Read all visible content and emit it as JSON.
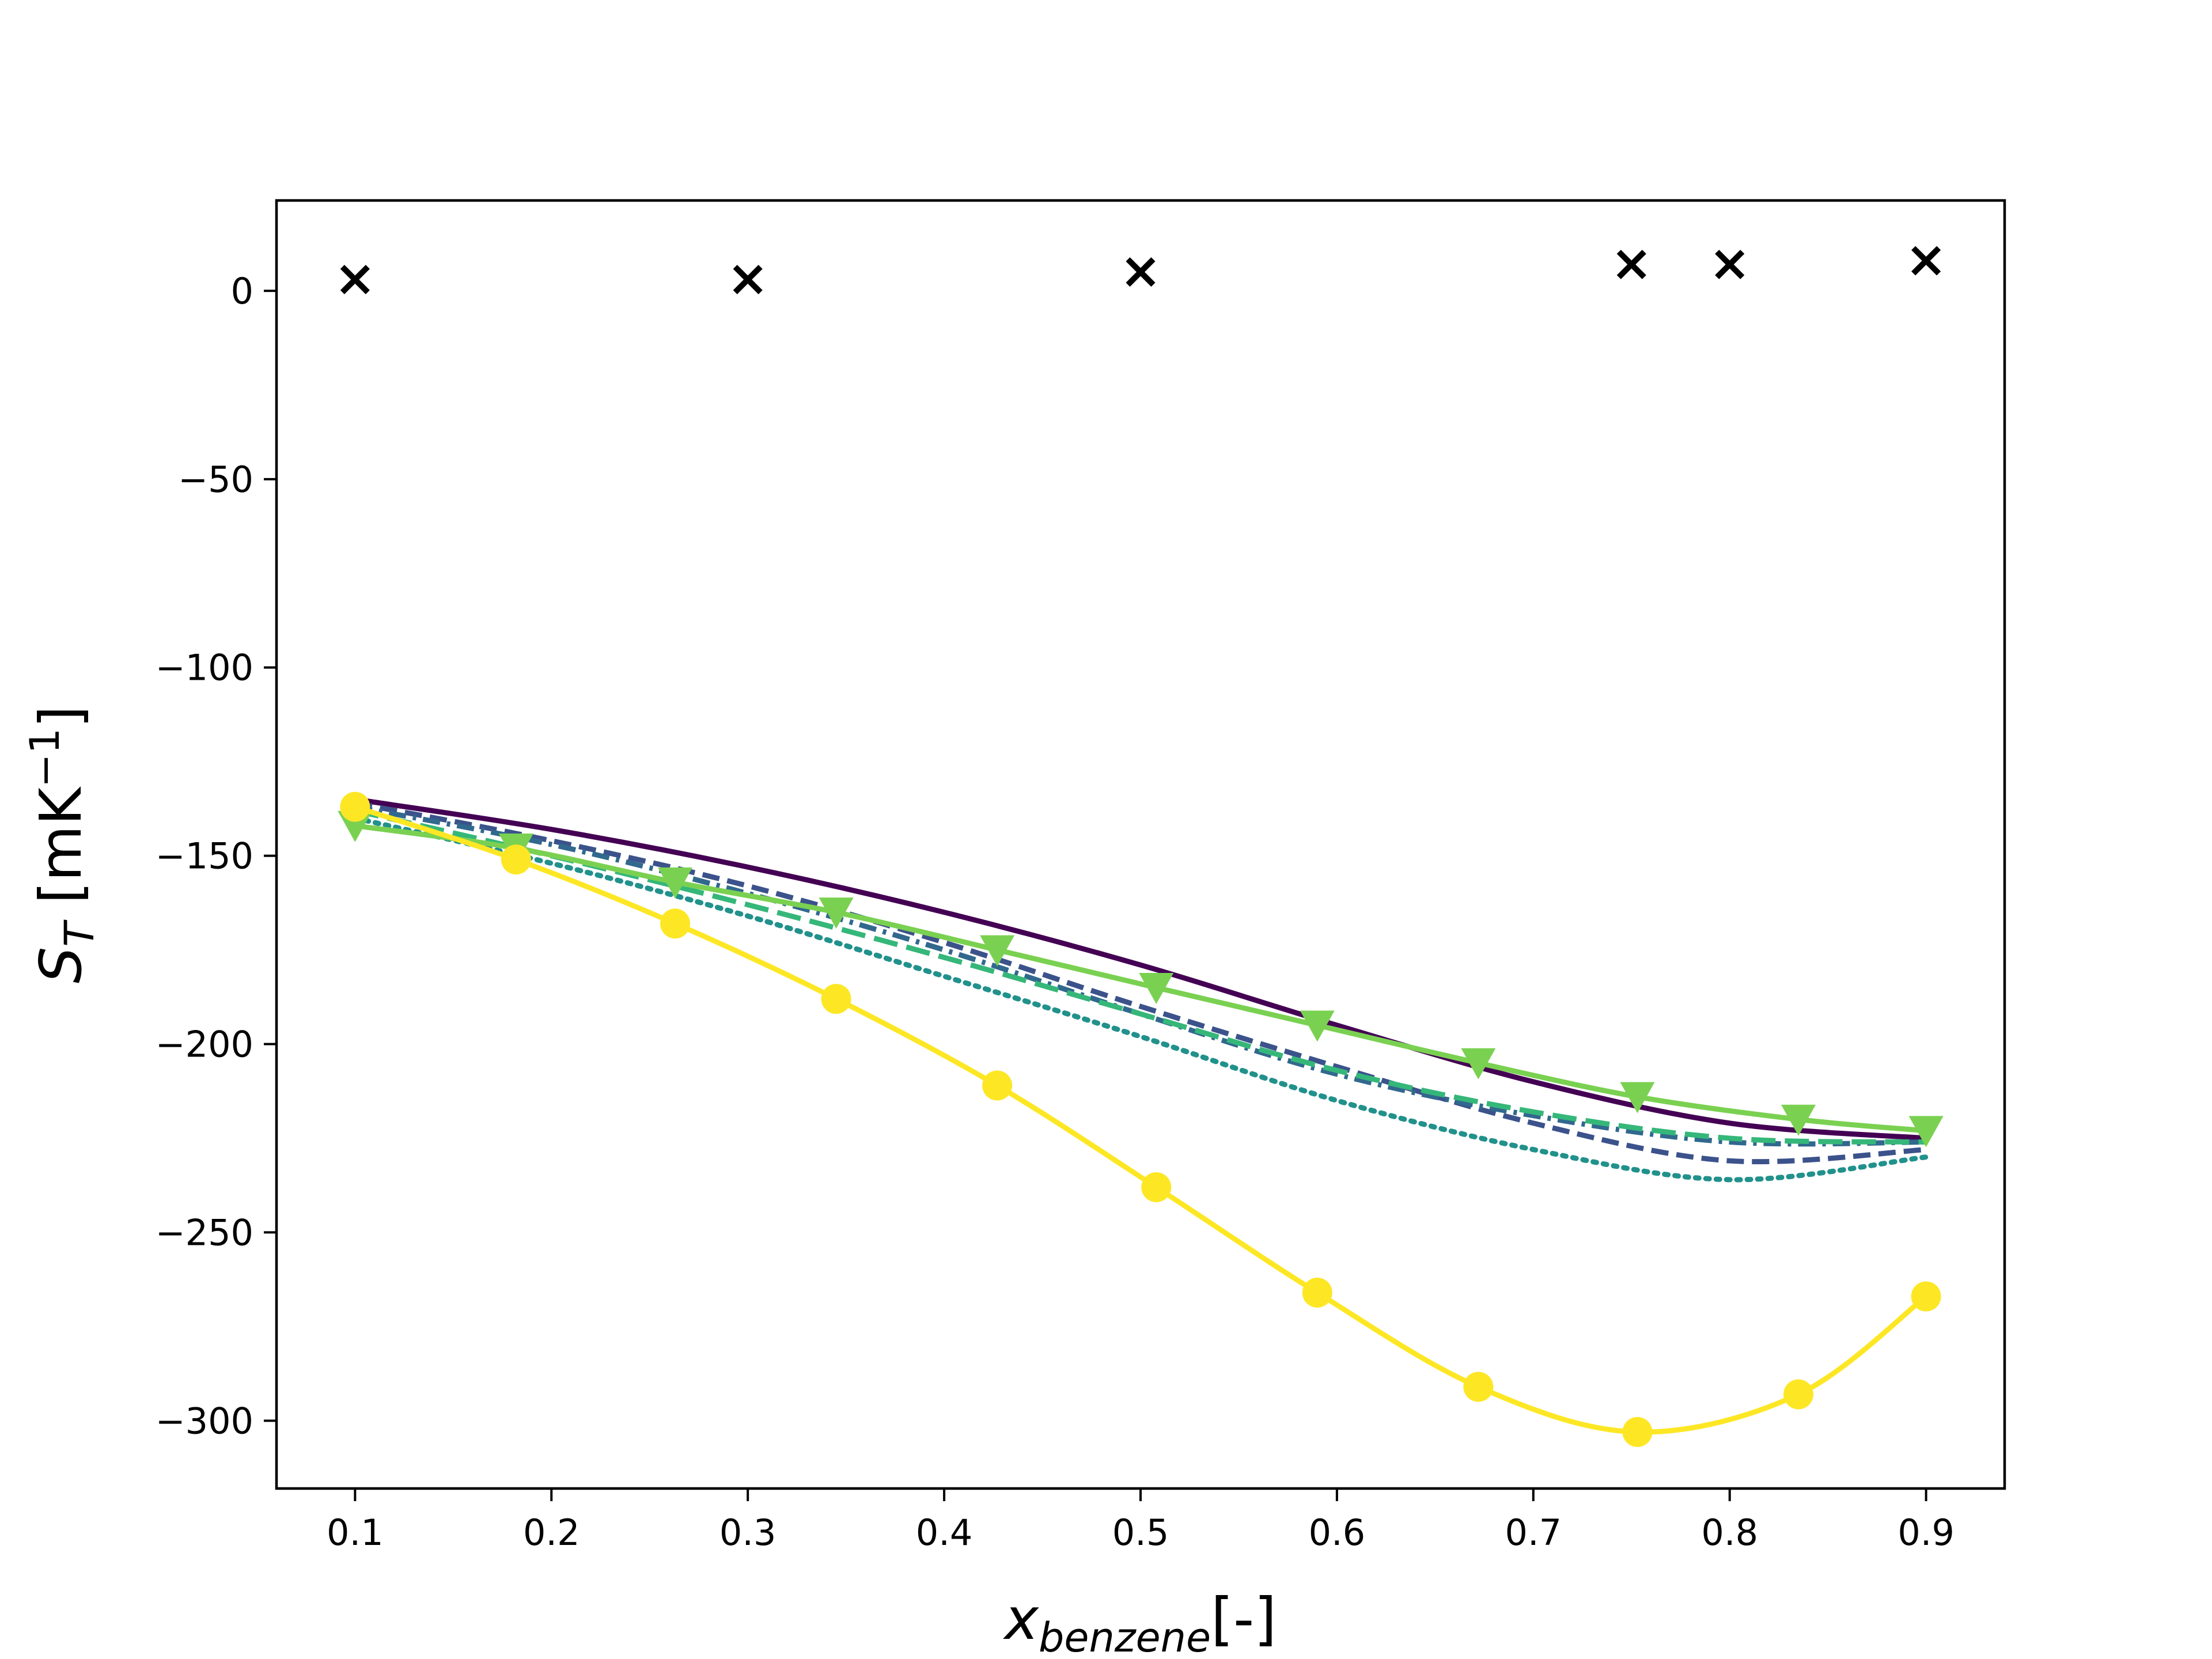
{
  "chart_data": {
    "type": "line",
    "title": "",
    "xlabel": {
      "main": "x",
      "sub": "benzene",
      "suffix": "[-]"
    },
    "ylabel": {
      "main": "S",
      "sub": "T",
      "bracket_open": " [mK",
      "sup": "−1",
      "bracket_close": "]"
    },
    "xlim": [
      0.06,
      0.94
    ],
    "ylim": [
      -318,
      24
    ],
    "xticks": [
      0.1,
      0.2,
      0.3,
      0.4,
      0.5,
      0.6,
      0.7,
      0.8,
      0.9
    ],
    "xtick_labels": [
      "0.1",
      "0.2",
      "0.3",
      "0.4",
      "0.5",
      "0.6",
      "0.7",
      "0.8",
      "0.9"
    ],
    "yticks": [
      0,
      -50,
      -100,
      -150,
      -200,
      -250,
      -300
    ],
    "ytick_labels": [
      "0",
      "−50",
      "−100",
      "−150",
      "−200",
      "−250",
      "−300"
    ],
    "grid": false,
    "legend": false,
    "series": [
      {
        "style": "solid",
        "color": "#440154",
        "marker": "none",
        "x": [
          0.1,
          0.2,
          0.3,
          0.4,
          0.5,
          0.6,
          0.7,
          0.8,
          0.9
        ],
        "y": [
          -135,
          -143,
          -153,
          -165,
          -179,
          -195,
          -210,
          -221,
          -225
        ]
      },
      {
        "style": "dashed",
        "color": "#3b528b",
        "marker": "none",
        "x": [
          0.1,
          0.2,
          0.3,
          0.4,
          0.5,
          0.6,
          0.7,
          0.8,
          0.9
        ],
        "y": [
          -136,
          -146,
          -158,
          -173,
          -190,
          -206,
          -221,
          -231,
          -228
        ]
      },
      {
        "style": "dashdot",
        "color": "#31688e",
        "marker": "none",
        "x": [
          0.1,
          0.2,
          0.3,
          0.4,
          0.5,
          0.6,
          0.7,
          0.8,
          0.9
        ],
        "y": [
          -137,
          -147,
          -160,
          -175,
          -192,
          -208,
          -219,
          -226,
          -226
        ]
      },
      {
        "style": "dotted",
        "color": "#21918c",
        "marker": "none",
        "x": [
          0.1,
          0.2,
          0.3,
          0.4,
          0.5,
          0.6,
          0.7,
          0.8,
          0.9
        ],
        "y": [
          -140,
          -152,
          -166,
          -182,
          -198,
          -215,
          -228,
          -236,
          -230
        ]
      },
      {
        "style": "longdash",
        "color": "#35b779",
        "marker": "none",
        "x": [
          0.1,
          0.2,
          0.3,
          0.4,
          0.5,
          0.6,
          0.7,
          0.8,
          0.9
        ],
        "y": [
          -138,
          -150,
          -163,
          -177,
          -192,
          -207,
          -218,
          -225,
          -226
        ]
      },
      {
        "style": "solid",
        "color": "#7ad151",
        "marker": "triangle-down",
        "x": [
          0.1,
          0.182,
          0.263,
          0.345,
          0.427,
          0.508,
          0.59,
          0.672,
          0.753,
          0.835,
          0.9
        ],
        "y": [
          -142,
          -148,
          -157,
          -165,
          -175,
          -185,
          -195,
          -205,
          -214,
          -220,
          -223
        ]
      },
      {
        "style": "solid",
        "color": "#fde725",
        "marker": "circle",
        "x": [
          0.1,
          0.182,
          0.263,
          0.345,
          0.427,
          0.508,
          0.59,
          0.672,
          0.753,
          0.835,
          0.9
        ],
        "y": [
          -137,
          -151,
          -168,
          -188,
          -211,
          -238,
          -266,
          -291,
          -303,
          -293,
          -267
        ]
      },
      {
        "style": "none",
        "color": "#000000",
        "marker": "x",
        "x": [
          0.1,
          0.3,
          0.5,
          0.75,
          0.8,
          0.9
        ],
        "y": [
          3,
          3,
          5,
          7,
          7,
          8
        ]
      }
    ]
  }
}
